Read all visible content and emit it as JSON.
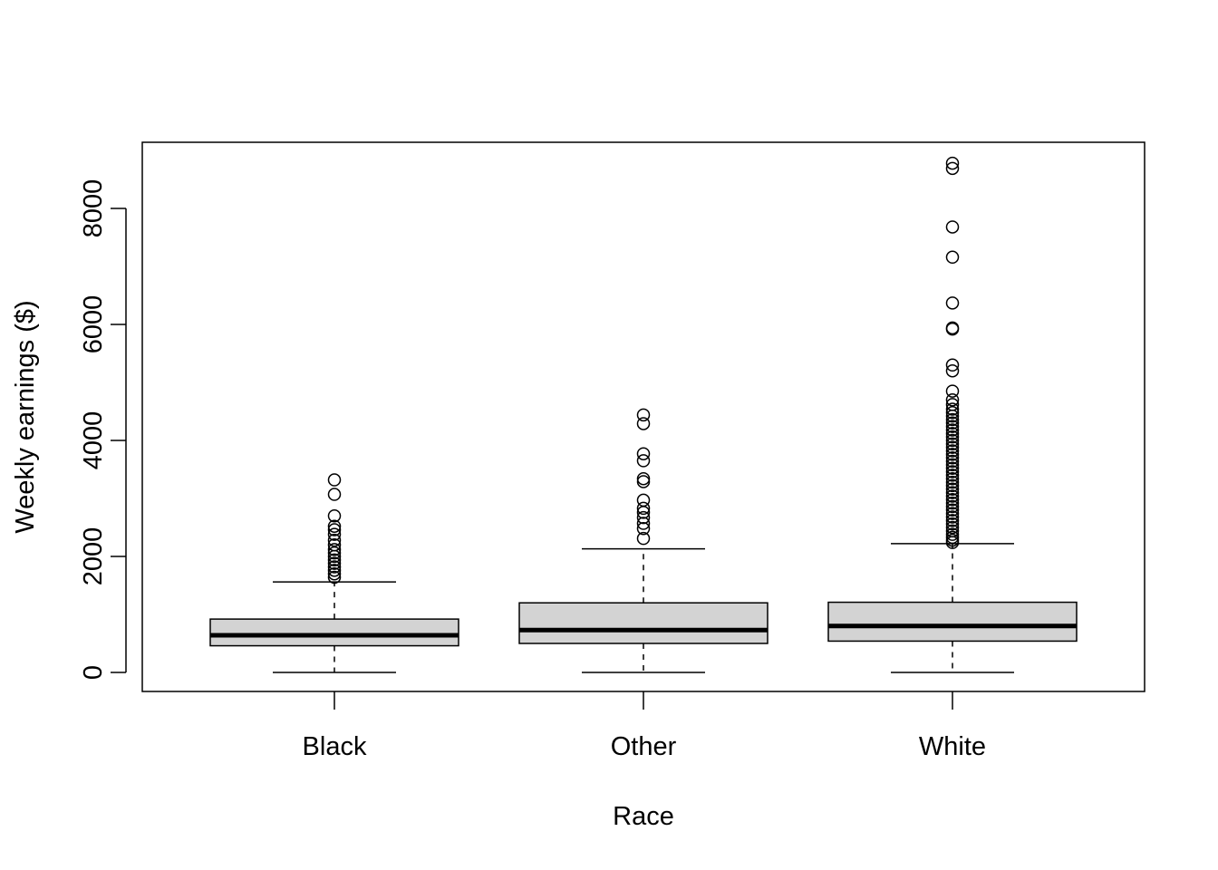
{
  "chart_data": {
    "type": "boxplot",
    "xlabel": "Race",
    "ylabel": "Weekly earnings ($)",
    "categories": [
      "Black",
      "Other",
      "White"
    ],
    "ylim": [
      -350,
      9100
    ],
    "yticks": [
      0,
      2000,
      4000,
      6000,
      8000
    ],
    "ytick_labels": [
      "0",
      "2000",
      "4000",
      "6000",
      "8000"
    ],
    "grid": false,
    "colors": {
      "box_fill": "#d3d3d3",
      "stroke": "#000000"
    },
    "boxes": [
      {
        "category": "Black",
        "whisker_low": 0,
        "q1": 460,
        "median": 640,
        "q3": 920,
        "whisker_high": 1560,
        "outliers": [
          1640,
          1700,
          1760,
          1820,
          1880,
          1940,
          2000,
          2060,
          2120,
          2200,
          2280,
          2380,
          2460,
          2520,
          2700,
          3070,
          3320
        ]
      },
      {
        "category": "Other",
        "whisker_low": 0,
        "q1": 500,
        "median": 730,
        "q3": 1200,
        "whisker_high": 2130,
        "outliers": [
          2310,
          2480,
          2570,
          2670,
          2760,
          2830,
          2970,
          3290,
          3340,
          3650,
          3770,
          4290,
          4440
        ]
      },
      {
        "category": "White",
        "whisker_low": 0,
        "q1": 540,
        "median": 800,
        "q3": 1210,
        "whisker_high": 2220,
        "outliers": [
          2240,
          2280,
          2330,
          2380,
          2440,
          2500,
          2560,
          2620,
          2680,
          2740,
          2800,
          2860,
          2920,
          2980,
          3040,
          3100,
          3160,
          3220,
          3280,
          3340,
          3400,
          3460,
          3520,
          3580,
          3640,
          3700,
          3760,
          3820,
          3880,
          3940,
          4000,
          4060,
          4120,
          4180,
          4240,
          4300,
          4360,
          4420,
          4480,
          4540,
          4620,
          4700,
          4850,
          5200,
          5300,
          5920,
          5940,
          6370,
          7160,
          7680,
          8690,
          8780
        ]
      }
    ]
  }
}
